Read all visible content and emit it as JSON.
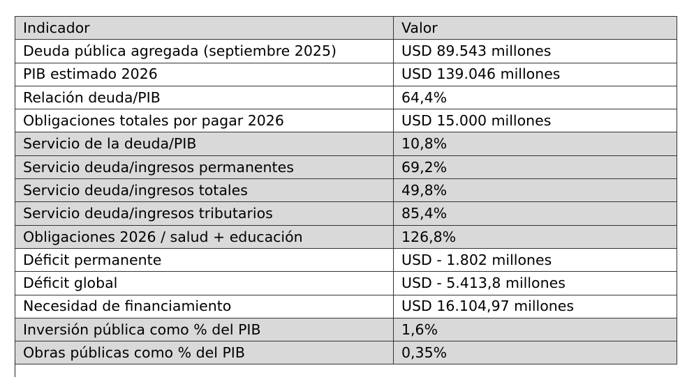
{
  "table": {
    "headers": [
      "Indicador",
      "Valor"
    ],
    "rows": [
      [
        "Deuda pública agregada (septiembre 2025)",
        "USD 89.543 millones"
      ],
      [
        "PIB estimado 2026",
        "USD 139.046 millones"
      ],
      [
        "Relación deuda/PIB",
        "64,4%"
      ],
      [
        "Obligaciones totales por pagar 2026",
        "USD 15.000 millones"
      ],
      [
        "Servicio de la deuda/PIB",
        "10,8%"
      ],
      [
        "Servicio deuda/ingresos permanentes",
        "69,2%"
      ],
      [
        "Servicio deuda/ingresos totales",
        "49,8%"
      ],
      [
        "Servicio deuda/ingresos tributarios",
        "85,4%"
      ],
      [
        "Obligaciones 2026 / salud + educación",
        "126,8%"
      ],
      [
        "Déficit permanente",
        "USD - 1.802 millones"
      ],
      [
        "Déficit global",
        "USD - 5.413,8 millones"
      ],
      [
        "Necesidad de financiamiento",
        "USD 16.104,97 millones"
      ],
      [
        "Inversión pública como % del PIB",
        "1,6%"
      ],
      [
        "Obras públicas como % del PIB",
        "0,35%"
      ]
    ]
  },
  "colors": {
    "shaded_row": "#d9d9d9",
    "plain_row": "#ffffff",
    "border": "#333333",
    "text": "#000000"
  }
}
